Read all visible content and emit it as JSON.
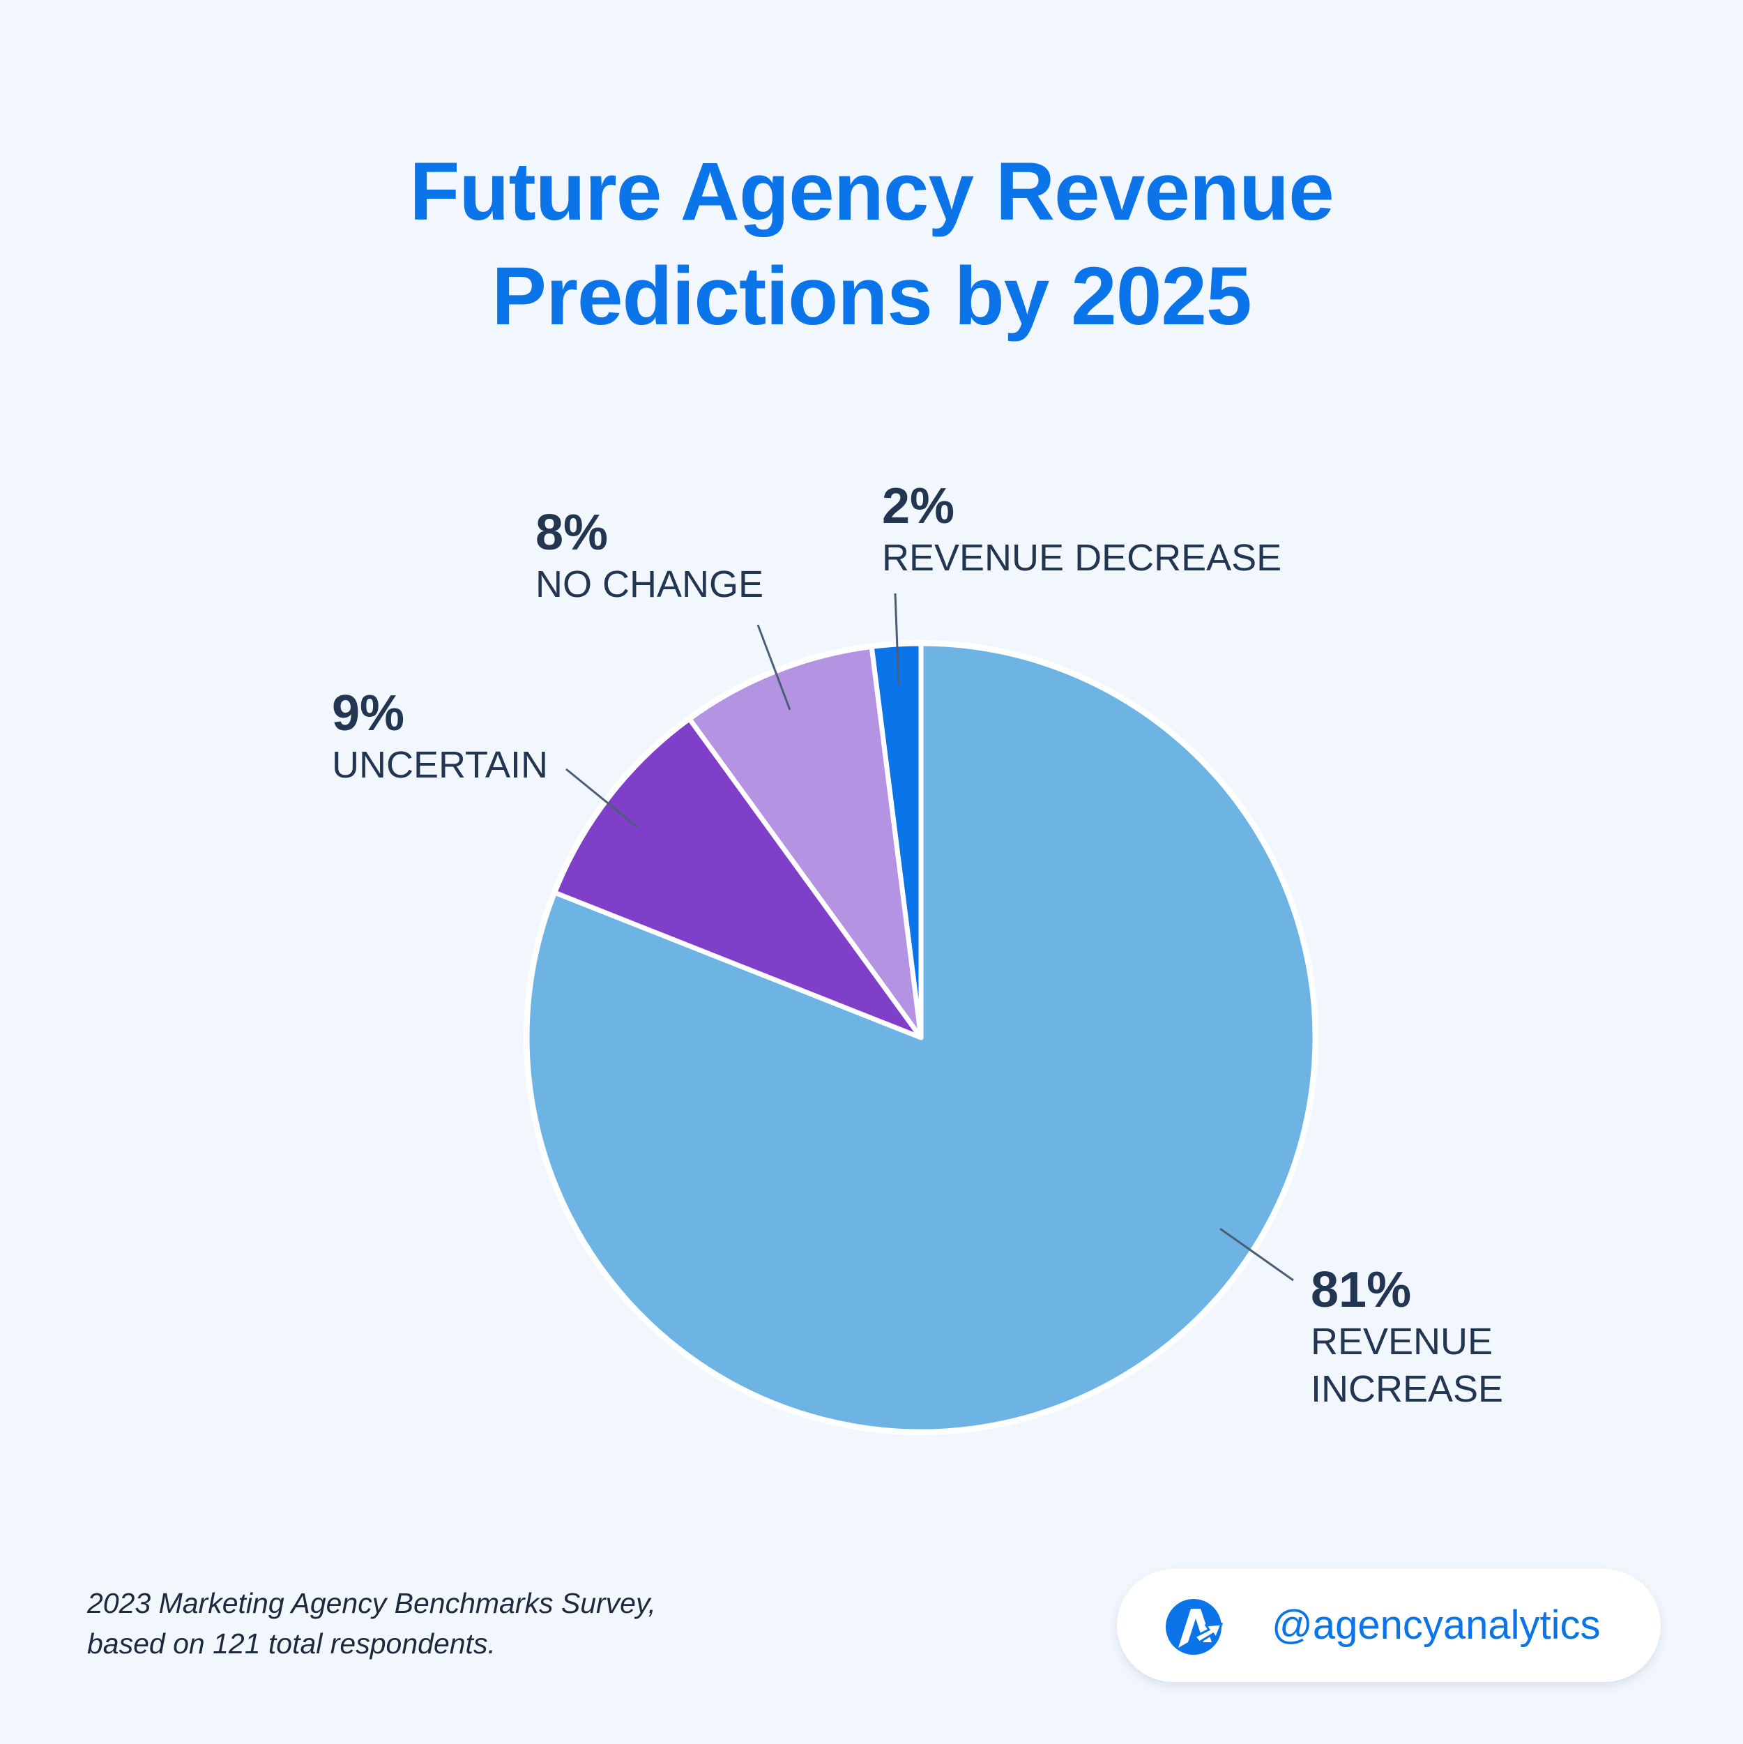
{
  "chart_data": {
    "type": "pie",
    "title": "Future Agency Revenue Predictions by 2025",
    "title_lines": [
      "Future Agency Revenue",
      "Predictions by 2025"
    ],
    "slices": [
      {
        "name": "REVENUE INCREASE",
        "pct_label": "81%",
        "value": 81,
        "color": "#6db4e5"
      },
      {
        "name": "UNCERTAIN",
        "pct_label": "9%",
        "value": 9,
        "color": "#7f3fc9"
      },
      {
        "name": "NO CHANGE",
        "pct_label": "8%",
        "value": 8,
        "color": "#b593e3"
      },
      {
        "name": "REVENUE DECREASE",
        "pct_label": "2%",
        "value": 2,
        "color": "#0a74e8"
      }
    ],
    "direction": "clockwise-from-top"
  },
  "footnote": {
    "line1": "2023 Marketing Agency Benchmarks Survey,",
    "line2": "based on 121 total respondents."
  },
  "brand": {
    "handle": "@agencyanalytics",
    "logo_icon": "agencyanalytics-logo-icon"
  },
  "colors": {
    "background": "#f2f7fd",
    "title": "#0a74e8",
    "label_text": "#223652",
    "leader_line": "#4a5e77"
  }
}
